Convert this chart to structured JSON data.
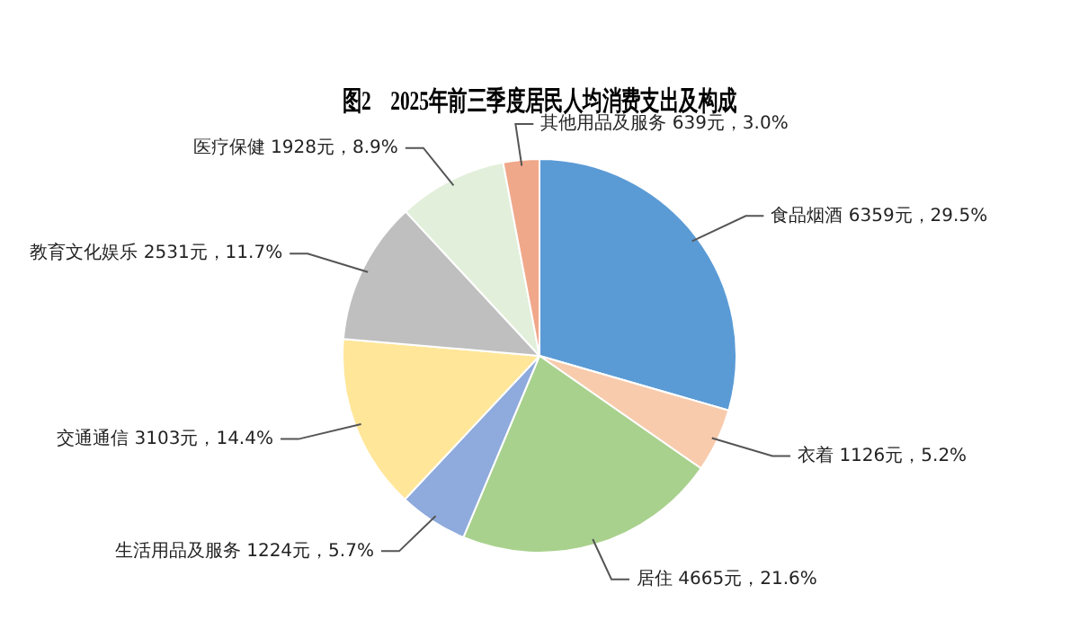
{
  "chart_data": {
    "type": "pie",
    "title": "图2　2025年前三季度居民人均消费支出及构成",
    "categories": [
      "食品烟酒",
      "衣着",
      "居住",
      "生活用品及服务",
      "交通通信",
      "教育文化娱乐",
      "医疗保健",
      "其他用品及服务"
    ],
    "values": [
      6359,
      1126,
      4665,
      1224,
      3103,
      2531,
      1928,
      639
    ],
    "value_labels": [
      "6359元，29.5%",
      "1126元，5.2%",
      "4665元，21.6%",
      "1224元，5.7%",
      "3103元，14.4%",
      "2531元，11.7%",
      "1928元，8.9%",
      "639元，3.0%"
    ],
    "colors": [
      "#5b9bd5",
      "#f8cbad",
      "#a9d18e",
      "#8faadc",
      "#ffe699",
      "#bfbfbf",
      "#e2efda",
      "#f0a88a"
    ],
    "legend": false
  }
}
